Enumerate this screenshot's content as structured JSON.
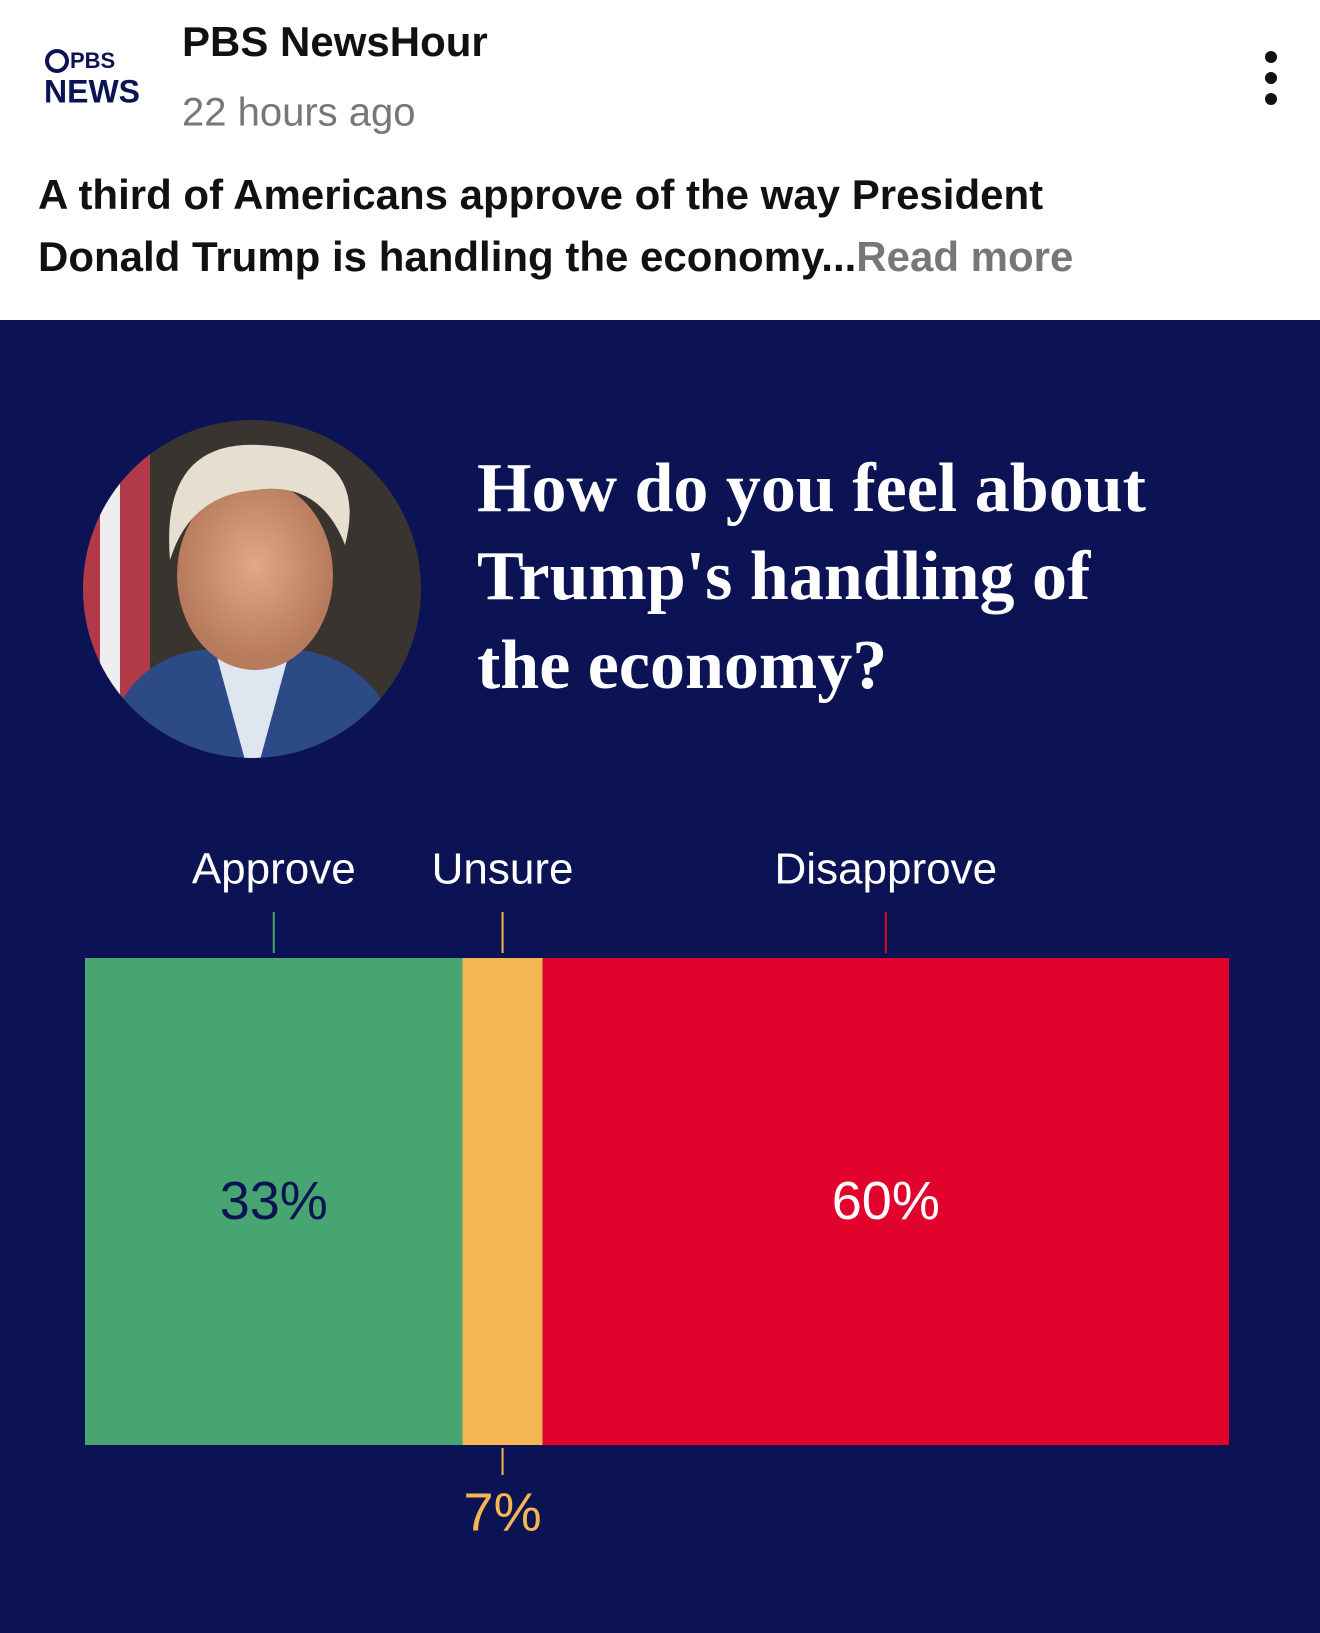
{
  "post": {
    "logo": [
      "PBS",
      "NEWS"
    ],
    "author": "PBS NewsHour",
    "time": "22 hours ago",
    "caption": [
      "A third of Americans approve of the way President",
      "Donald Trump is handling the economy"
    ],
    "ellipsis": "...",
    "read_more": "Read more"
  },
  "chart_data": {
    "type": "stacked-bar",
    "title": [
      "How do you feel about",
      "Trump's handling of",
      "the economy?"
    ],
    "categories": [
      "Approve",
      "Unsure",
      "Disapprove"
    ],
    "values": [
      33,
      7,
      60
    ],
    "value_labels": [
      "33%",
      "7%",
      "60%"
    ],
    "colors": [
      "#46a570",
      "#f5b553",
      "#e2032c"
    ],
    "value_label_colors": [
      "#0b1354",
      "#f5b553",
      "#ffffff"
    ]
  }
}
